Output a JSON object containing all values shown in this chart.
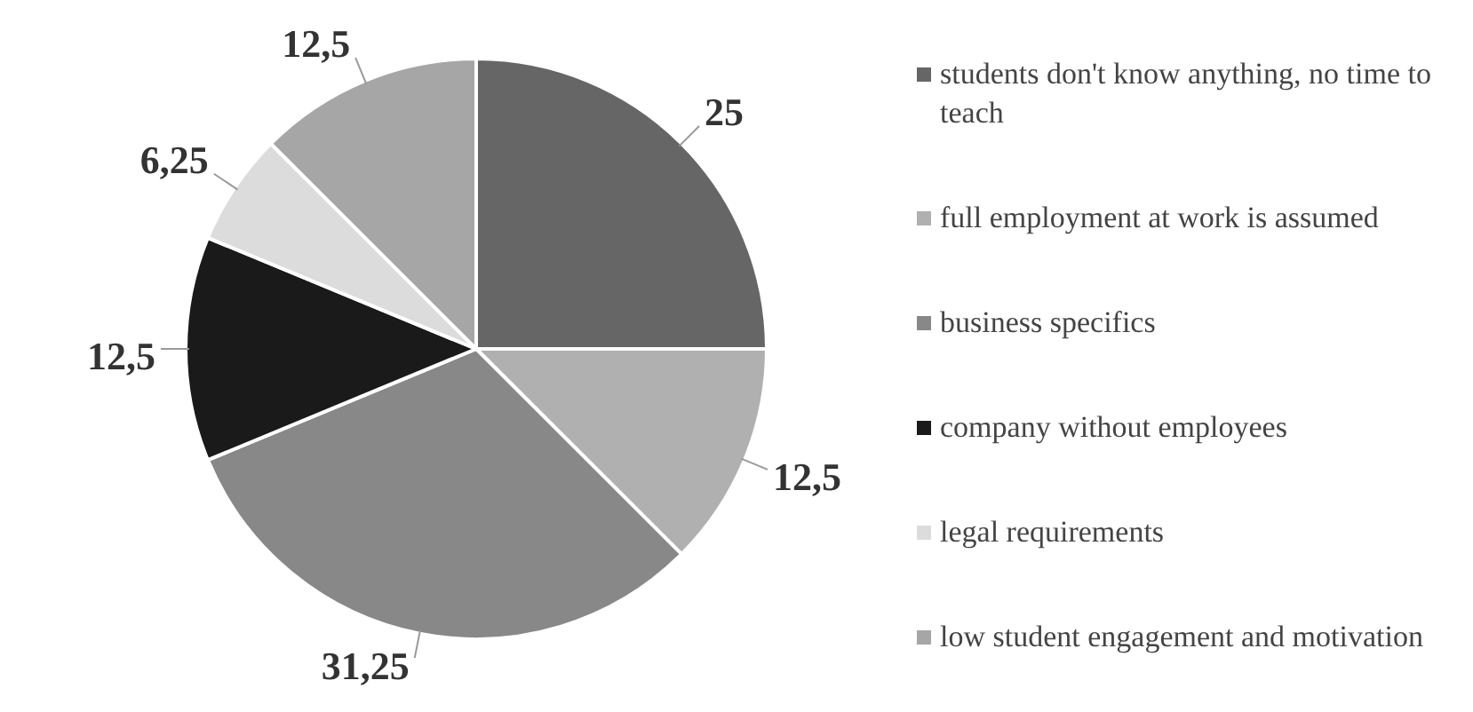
{
  "chart_data": {
    "type": "pie",
    "categories": [
      "students don't know anything, no time to teach",
      "full employment at work is assumed",
      "business specifics",
      "company without employees",
      "legal requirements",
      "low student engagement and motivation"
    ],
    "values": [
      25,
      12.5,
      31.25,
      12.5,
      6.25,
      12.5
    ],
    "value_labels": [
      "25",
      "12,5",
      "31,25",
      "12,5",
      "6,25",
      "12,5"
    ],
    "colors": [
      "#666666",
      "#b0b0b0",
      "#888888",
      "#1a1a1a",
      "#dcdcdc",
      "#a6a6a6"
    ],
    "legend": "right"
  }
}
